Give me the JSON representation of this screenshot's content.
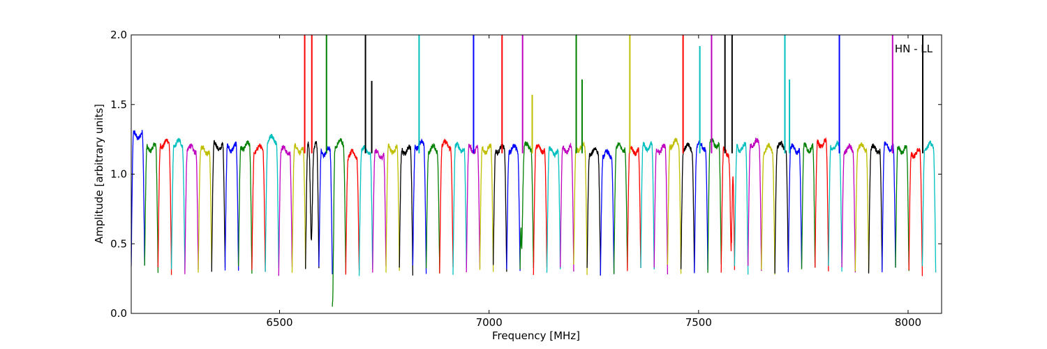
{
  "chart_data": {
    "type": "line",
    "title": "",
    "xlabel": "Frequency [MHz]",
    "ylabel": "Amplitude [arbitrary units]",
    "annotation": "HN - LL",
    "xlim": [
      6146,
      8080
    ],
    "ylim": [
      0.0,
      2.0
    ],
    "xticks": [
      6500,
      7000,
      7500,
      8000
    ],
    "yticks": [
      0.0,
      0.5,
      1.0,
      1.5,
      2.0
    ],
    "xtick_labels": [
      "6500",
      "7000",
      "7500",
      "8000"
    ],
    "ytick_labels": [
      "0.0",
      "0.5",
      "1.0",
      "1.5",
      "2.0"
    ],
    "grid": false,
    "legend": "none",
    "channel_start": 6146,
    "channel_width": 32,
    "channel_count": 60,
    "color_cycle": [
      "#0000ff",
      "#008000",
      "#ff0000",
      "#00bfbf",
      "#bf00bf",
      "#bfbf00",
      "#000000"
    ],
    "channel_levels": [
      1.28,
      1.19,
      1.22,
      1.22,
      1.18,
      1.17,
      1.2,
      1.19,
      1.2,
      1.18,
      1.25,
      1.17,
      1.18,
      1.2,
      1.16,
      1.22,
      1.14,
      1.17,
      1.14,
      1.18,
      1.17,
      1.21,
      1.18,
      1.21,
      1.19,
      1.18,
      1.18,
      1.18,
      1.18,
      1.2,
      1.18,
      1.16,
      1.18,
      1.19,
      1.16,
      1.14,
      1.19,
      1.17,
      1.2,
      1.18,
      1.22,
      1.19,
      1.2,
      1.22,
      1.16,
      1.19,
      1.22,
      1.18,
      1.2,
      1.18,
      1.19,
      1.22,
      1.2,
      1.18,
      1.19,
      1.18,
      1.2,
      1.18,
      1.15,
      1.2
    ],
    "spikes": [
      {
        "x": 6560,
        "y": 2.0,
        "color": "#ff0000"
      },
      {
        "x": 6577,
        "y": 2.0,
        "color": "#ff0000"
      },
      {
        "x": 6612,
        "y": 2.0,
        "color": "#008000"
      },
      {
        "x": 6705,
        "y": 2.0,
        "color": "#000000"
      },
      {
        "x": 6720,
        "y": 1.67,
        "color": "#000000"
      },
      {
        "x": 6833,
        "y": 2.0,
        "color": "#00bfbf"
      },
      {
        "x": 6963,
        "y": 2.0,
        "color": "#0000ff"
      },
      {
        "x": 7031,
        "y": 2.0,
        "color": "#ff0000"
      },
      {
        "x": 7080,
        "y": 2.0,
        "color": "#bf00bf"
      },
      {
        "x": 7103,
        "y": 1.57,
        "color": "#bfbf00"
      },
      {
        "x": 7208,
        "y": 2.0,
        "color": "#008000"
      },
      {
        "x": 7222,
        "y": 1.68,
        "color": "#008000"
      },
      {
        "x": 7336,
        "y": 2.0,
        "color": "#bfbf00"
      },
      {
        "x": 7463,
        "y": 2.0,
        "color": "#ff0000"
      },
      {
        "x": 7503,
        "y": 1.92,
        "color": "#00bfbf"
      },
      {
        "x": 7531,
        "y": 2.0,
        "color": "#bf00bf"
      },
      {
        "x": 7563,
        "y": 2.0,
        "color": "#000000"
      },
      {
        "x": 7580,
        "y": 2.0,
        "color": "#000000"
      },
      {
        "x": 7706,
        "y": 2.0,
        "color": "#00bfbf"
      },
      {
        "x": 7717,
        "y": 1.68,
        "color": "#00bfbf"
      },
      {
        "x": 7836,
        "y": 2.0,
        "color": "#0000ff"
      },
      {
        "x": 7963,
        "y": 2.0,
        "color": "#bf00bf"
      },
      {
        "x": 8035,
        "y": 2.0,
        "color": "#000000"
      }
    ],
    "dips": [
      {
        "x": 6576,
        "y": 0.52,
        "color": "#ff0000"
      },
      {
        "x": 6626,
        "y": 0.07,
        "color": "#008000"
      },
      {
        "x": 7078,
        "y": 0.5,
        "color": "#bf00bf"
      },
      {
        "x": 7578,
        "y": 0.5,
        "color": "#000000"
      }
    ]
  }
}
